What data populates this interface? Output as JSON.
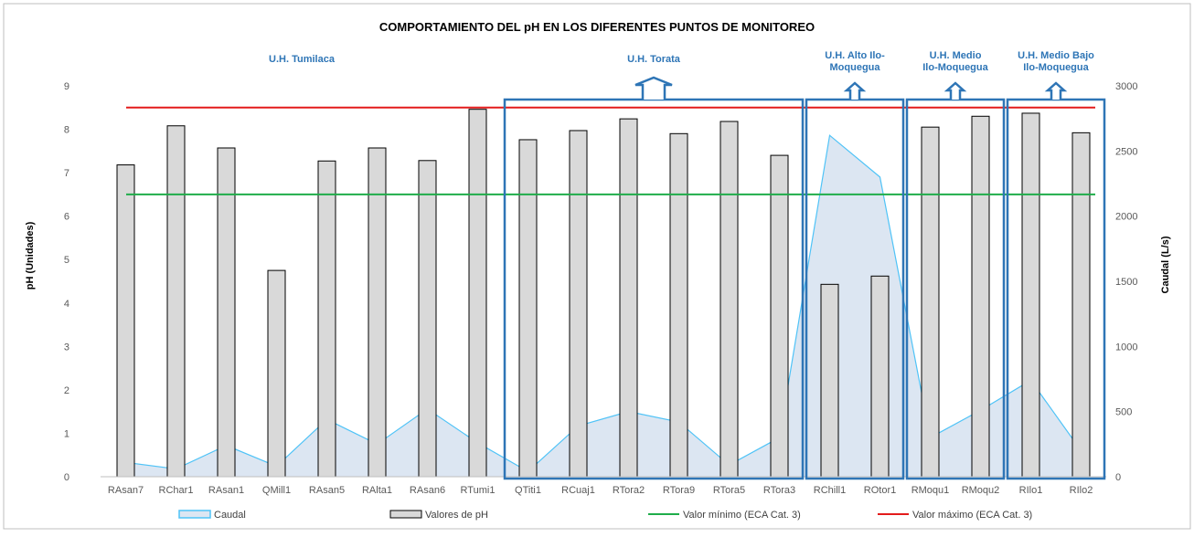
{
  "chart_data": {
    "type": "bar",
    "title": "COMPORTAMIENTO DEL pH EN LOS DIFERENTES PUNTOS DE MONITOREO",
    "ylabel": "pH (Unidades)",
    "y2label": "Caudal (L/s)",
    "ylim": [
      0,
      9
    ],
    "y2lim": [
      0,
      3000
    ],
    "yticks": [
      "0",
      "1",
      "2",
      "3",
      "4",
      "5",
      "6",
      "7",
      "8",
      "9"
    ],
    "y2ticks": [
      "0",
      "500",
      "1000",
      "1500",
      "2000",
      "2500",
      "3000"
    ],
    "categories": [
      "RAsan7",
      "RChar1",
      "RAsan1",
      "QMill1",
      "RAsan5",
      "RAlta1",
      "RAsan6",
      "RTumi1",
      "QTiti1",
      "RCuaj1",
      "RTora2",
      "RTora9",
      "RTora5",
      "RTora3",
      "RChill1",
      "ROtor1",
      "RMoqu1",
      "RMoqu2",
      "RIlo1",
      "RIlo2"
    ],
    "series": [
      {
        "name": "Valores de pH",
        "kind": "bar",
        "axis": "left",
        "color": "#d9d9d9",
        "values": [
          7.18,
          8.08,
          7.57,
          4.75,
          7.27,
          7.57,
          7.28,
          8.46,
          7.76,
          7.97,
          8.24,
          7.9,
          8.18,
          7.4,
          4.43,
          4.62,
          8.05,
          8.3,
          8.37,
          7.92
        ]
      },
      {
        "name": "Caudal",
        "kind": "area",
        "axis": "right",
        "color": "#4fc3f7",
        "values": [
          110,
          60,
          240,
          80,
          440,
          250,
          520,
          260,
          40,
          390,
          500,
          420,
          90,
          300,
          2620,
          2300,
          300,
          510,
          740,
          200
        ]
      },
      {
        "name": "Valor mínimo (ECA Cat. 3)",
        "kind": "hline",
        "axis": "left",
        "color": "#1fad4a",
        "value": 6.5
      },
      {
        "name": "Valor máximo (ECA Cat. 3)",
        "kind": "hline",
        "axis": "left",
        "color": "#e31b1b",
        "value": 8.5
      }
    ],
    "groups": [
      {
        "label": "U.H. Tumilaca",
        "from": 0,
        "to": 7,
        "boxed": false
      },
      {
        "label": "U.H. Torata",
        "from": 8,
        "to": 13,
        "boxed": true
      },
      {
        "label": "U.H. Alto Ilo-\nMoquegua",
        "from": 14,
        "to": 15,
        "boxed": true
      },
      {
        "label": "U.H. Medio\nIlo-Moquegua",
        "from": 16,
        "to": 17,
        "boxed": true
      },
      {
        "label": "U.H. Medio  Bajo\nIlo-Moquegua",
        "from": 18,
        "to": 19,
        "boxed": true
      }
    ],
    "legend_position": "bottom",
    "grid": false
  }
}
